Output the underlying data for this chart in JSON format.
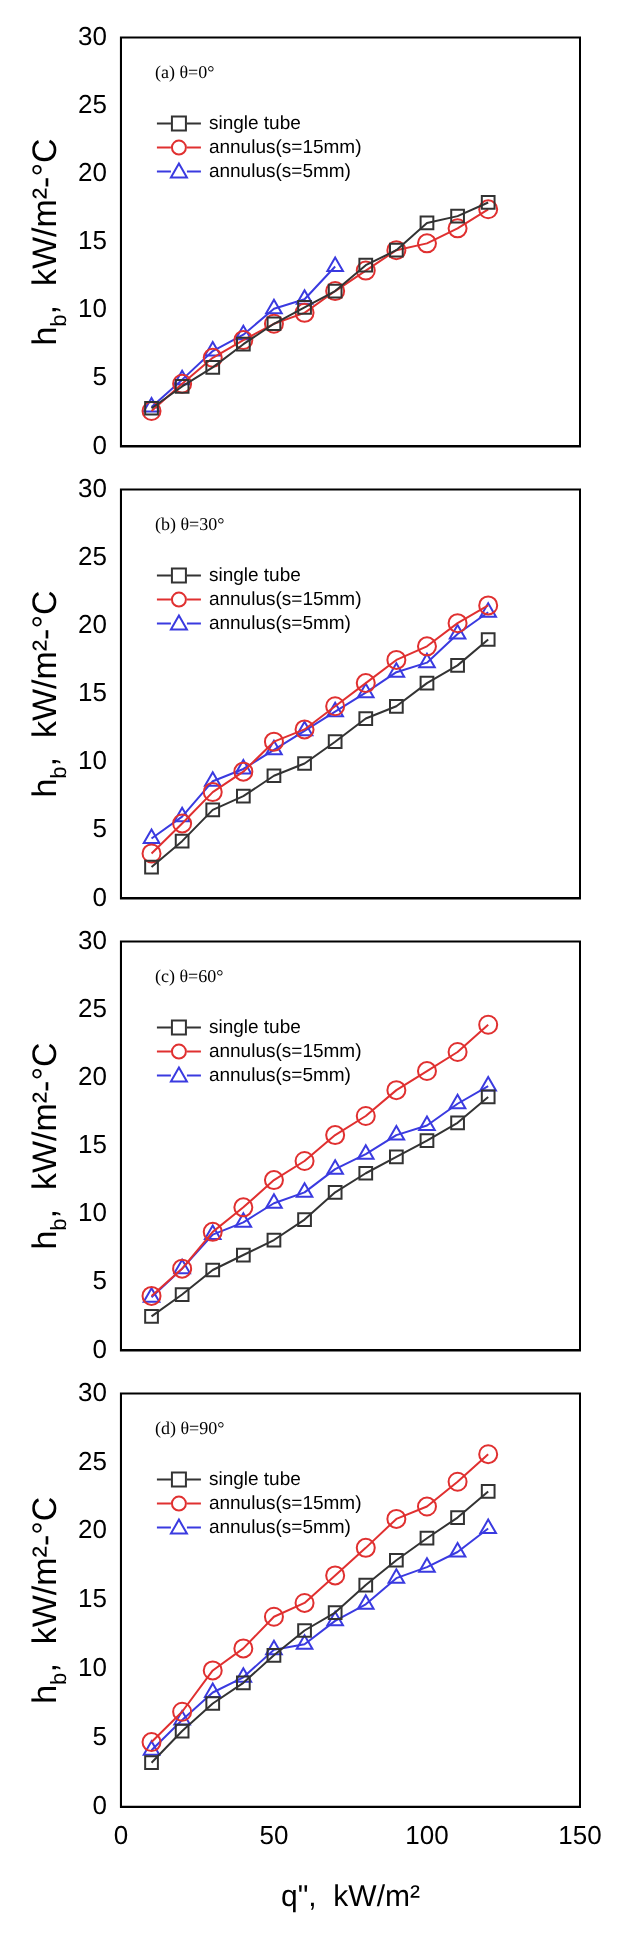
{
  "chart_data": [
    {
      "type": "line",
      "title": "(a) θ=0°",
      "ylabel": "h$_{b}$,  kW/m²-°C",
      "x": [
        10,
        20,
        30,
        40,
        50,
        60,
        70,
        80,
        90,
        100,
        110,
        120
      ],
      "xlim": [
        0,
        150
      ],
      "xticks": [
        0,
        50,
        100,
        150
      ],
      "ylim": [
        0,
        30
      ],
      "yticks": [
        0,
        5,
        10,
        15,
        20,
        25,
        30
      ],
      "tick_labels": "y",
      "legend": "top left",
      "series": [
        {
          "name": "single tube",
          "color": "#333333",
          "marker": "square",
          "values": [
            2.8,
            4.4,
            5.8,
            7.5,
            9.0,
            10.2,
            11.4,
            13.3,
            14.4,
            16.4,
            16.9,
            17.9
          ]
        },
        {
          "name": "annulus(s=15mm)",
          "color": "#e03030",
          "marker": "circle",
          "values": [
            2.6,
            4.6,
            6.5,
            7.8,
            9.0,
            9.8,
            11.4,
            12.9,
            14.4,
            14.9,
            16.0,
            17.4
          ]
        },
        {
          "name": "annulus(s=5mm)",
          "color": "#3a3ae0",
          "marker": "triangle",
          "values": [
            2.9,
            4.9,
            7.0,
            8.2,
            10.1,
            10.8,
            13.2,
            null,
            null,
            null,
            null,
            null
          ]
        }
      ]
    },
    {
      "type": "line",
      "title": "(b) θ=30°",
      "ylabel": "h$_{b}$,  kW/m²-°C",
      "x": [
        10,
        20,
        30,
        40,
        50,
        60,
        70,
        80,
        90,
        100,
        110,
        120
      ],
      "xlim": [
        0,
        150
      ],
      "xticks": [
        0,
        50,
        100,
        150
      ],
      "ylim": [
        0,
        30
      ],
      "yticks": [
        0,
        5,
        10,
        15,
        20,
        25,
        30
      ],
      "tick_labels": "y",
      "legend": "top left",
      "series": [
        {
          "name": "single tube",
          "color": "#333333",
          "marker": "square",
          "values": [
            2.3,
            4.2,
            6.5,
            7.5,
            9.0,
            9.9,
            11.5,
            13.2,
            14.1,
            15.8,
            17.1,
            19.0
          ]
        },
        {
          "name": "annulus(s=15mm)",
          "color": "#e03030",
          "marker": "circle",
          "values": [
            3.3,
            5.5,
            7.8,
            9.3,
            11.5,
            12.4,
            14.1,
            15.8,
            17.5,
            18.5,
            20.2,
            21.5
          ]
        },
        {
          "name": "annulus(s=5mm)",
          "color": "#3a3ae0",
          "marker": "triangle",
          "values": [
            4.4,
            6.0,
            8.6,
            9.5,
            10.9,
            12.3,
            13.7,
            15.1,
            16.6,
            17.3,
            19.4,
            21.0
          ]
        }
      ]
    },
    {
      "type": "line",
      "title": "(c) θ=60°",
      "ylabel": "h$_{b}$,  kW/m²-°C",
      "x": [
        10,
        20,
        30,
        40,
        50,
        60,
        70,
        80,
        90,
        100,
        110,
        120
      ],
      "xlim": [
        0,
        150
      ],
      "xticks": [
        0,
        50,
        100,
        150
      ],
      "ylim": [
        0,
        30
      ],
      "yticks": [
        0,
        5,
        10,
        15,
        20,
        25,
        30
      ],
      "tick_labels": "y",
      "legend": "top left",
      "series": [
        {
          "name": "single tube",
          "color": "#333333",
          "marker": "square",
          "values": [
            2.5,
            4.1,
            5.9,
            7.0,
            8.1,
            9.6,
            11.6,
            13.0,
            14.2,
            15.4,
            16.7,
            18.6
          ]
        },
        {
          "name": "annulus(s=15mm)",
          "color": "#e03030",
          "marker": "circle",
          "values": [
            4.0,
            6.0,
            8.7,
            10.5,
            12.5,
            13.9,
            15.8,
            17.2,
            19.1,
            20.5,
            21.9,
            23.9
          ]
        },
        {
          "name": "annulus(s=5mm)",
          "color": "#3a3ae0",
          "marker": "triangle",
          "values": [
            3.9,
            6.0,
            8.5,
            9.4,
            10.8,
            11.6,
            13.3,
            14.4,
            15.8,
            16.5,
            18.1,
            19.4
          ]
        }
      ]
    },
    {
      "type": "line",
      "title": "(d) θ=90°",
      "ylabel": "h$_{b}$,  kW/m²-°C",
      "xlabel": "q\",  kW/m²",
      "x": [
        10,
        20,
        30,
        40,
        50,
        60,
        70,
        80,
        90,
        100,
        110,
        120
      ],
      "xlim": [
        0,
        150
      ],
      "xticks": [
        0,
        50,
        100,
        150
      ],
      "ylim": [
        0,
        30
      ],
      "yticks": [
        0,
        5,
        10,
        15,
        20,
        25,
        30
      ],
      "legend": "top left",
      "series": [
        {
          "name": "single tube",
          "color": "#333333",
          "marker": "square",
          "values": [
            3.2,
            5.5,
            7.5,
            9.0,
            11.0,
            12.8,
            14.1,
            16.1,
            17.9,
            19.5,
            21.0,
            22.9
          ]
        },
        {
          "name": "annulus(s=15mm)",
          "color": "#e03030",
          "marker": "circle",
          "values": [
            4.7,
            6.9,
            9.9,
            11.5,
            13.8,
            14.8,
            16.8,
            18.8,
            20.9,
            21.8,
            23.6,
            25.6
          ]
        },
        {
          "name": "annulus(s=5mm)",
          "color": "#3a3ae0",
          "marker": "triangle",
          "values": [
            4.1,
            6.3,
            8.3,
            9.4,
            11.4,
            11.8,
            13.5,
            14.7,
            16.6,
            17.4,
            18.5,
            20.2
          ]
        }
      ]
    }
  ]
}
